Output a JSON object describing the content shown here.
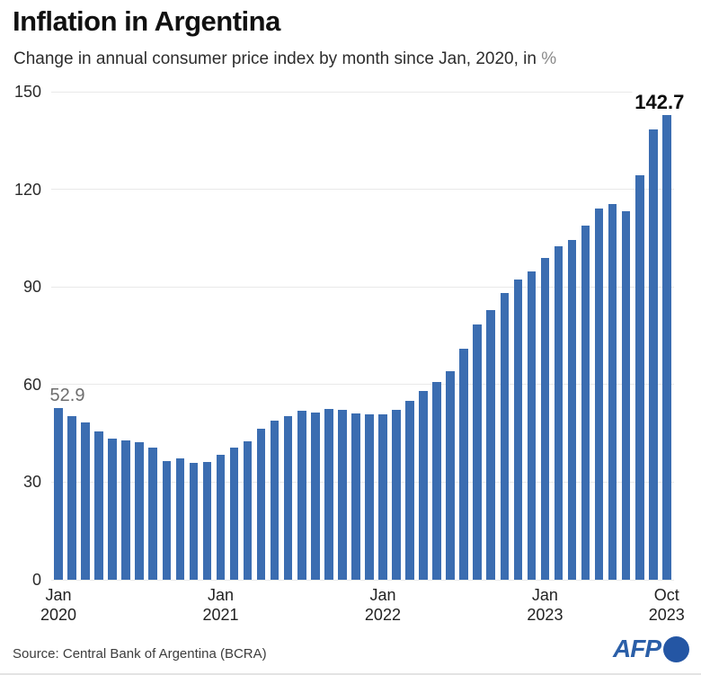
{
  "header": {
    "title": "Inflation in Argentina",
    "subtitle": "Change in annual consumer price index by month since Jan, 2020, in ",
    "subtitle_pct": "%"
  },
  "footer": {
    "source": "Source: Central Bank of Argentina (BCRA)",
    "logo_text": "AFP"
  },
  "colors": {
    "bar": "#3b6db1",
    "afp_blue": "#2b5fa8",
    "gridline": "#e9e9e9",
    "annotation_gray": "#6e6e6e",
    "annotation_black": "#0d0d0d"
  },
  "chart_data": {
    "type": "bar",
    "title": "Inflation in Argentina",
    "subtitle": "Change in annual consumer price index by month since Jan, 2020, in %",
    "ylabel": "",
    "xlabel": "",
    "ylim": [
      0,
      150
    ],
    "yticks": [
      0,
      30,
      60,
      90,
      120,
      150
    ],
    "grid": "horizontal",
    "legend": "none",
    "x": [
      "Jan 2020",
      "Feb 2020",
      "Mar 2020",
      "Apr 2020",
      "May 2020",
      "Jun 2020",
      "Jul 2020",
      "Aug 2020",
      "Sep 2020",
      "Oct 2020",
      "Nov 2020",
      "Dec 2020",
      "Jan 2021",
      "Feb 2021",
      "Mar 2021",
      "Apr 2021",
      "May 2021",
      "Jun 2021",
      "Jul 2021",
      "Aug 2021",
      "Sep 2021",
      "Oct 2021",
      "Nov 2021",
      "Dec 2021",
      "Jan 2022",
      "Feb 2022",
      "Mar 2022",
      "Apr 2022",
      "May 2022",
      "Jun 2022",
      "Jul 2022",
      "Aug 2022",
      "Sep 2022",
      "Oct 2022",
      "Nov 2022",
      "Dec 2022",
      "Jan 2023",
      "Feb 2023",
      "Mar 2023",
      "Apr 2023",
      "May 2023",
      "Jun 2023",
      "Jul 2023",
      "Aug 2023",
      "Sep 2023",
      "Oct 2023"
    ],
    "values": [
      52.9,
      50.3,
      48.4,
      45.6,
      43.4,
      42.8,
      42.4,
      40.7,
      36.6,
      37.2,
      35.8,
      36.1,
      38.5,
      40.7,
      42.6,
      46.3,
      48.8,
      50.2,
      51.8,
      51.4,
      52.5,
      52.1,
      51.2,
      50.9,
      50.7,
      52.3,
      55.1,
      58.0,
      60.7,
      64.0,
      71.0,
      78.5,
      83.0,
      88.0,
      92.4,
      94.8,
      98.8,
      102.5,
      104.3,
      108.8,
      114.2,
      115.6,
      113.4,
      124.4,
      138.3,
      142.7
    ],
    "xticks": [
      {
        "line1": "Jan",
        "line2": "2020",
        "index": 0
      },
      {
        "line1": "Jan",
        "line2": "2021",
        "index": 12
      },
      {
        "line1": "Jan",
        "line2": "2022",
        "index": 24
      },
      {
        "line1": "Jan",
        "line2": "2023",
        "index": 36
      },
      {
        "line1": "Oct",
        "line2": "2023",
        "index": 45
      }
    ],
    "annotations": [
      {
        "text": "52.9",
        "index": 0,
        "bold": false,
        "dx": 10
      },
      {
        "text": "142.7",
        "index": 45,
        "bold": true,
        "dx": -8
      }
    ]
  }
}
